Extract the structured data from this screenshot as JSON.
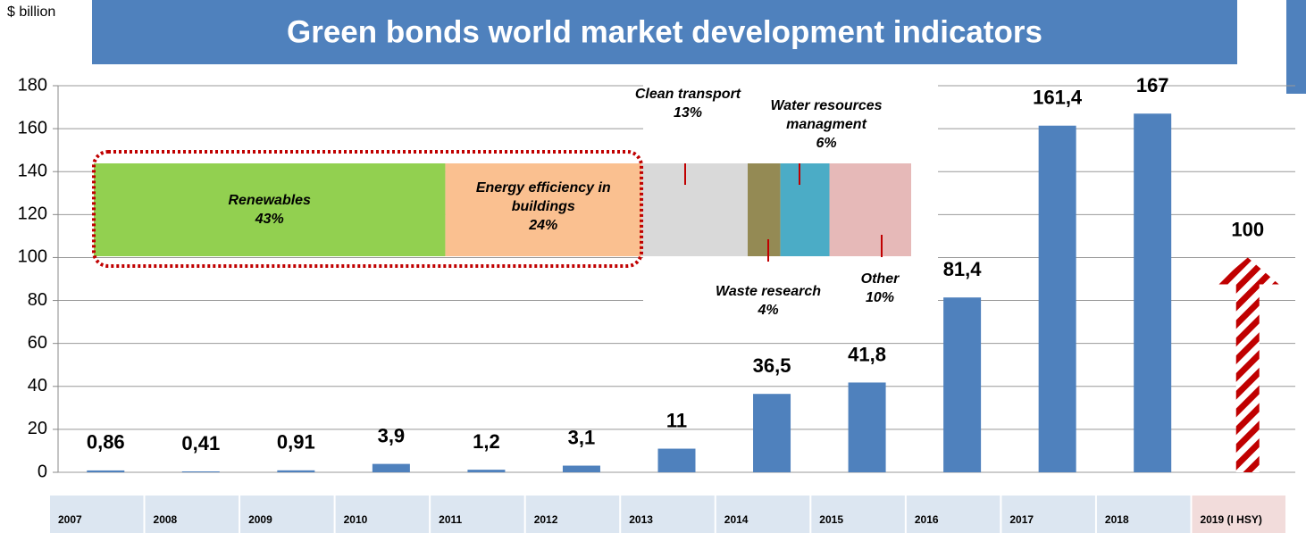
{
  "chart_data": [
    {
      "type": "bar",
      "title": "Green bonds world market development indicators",
      "y_label": "$ billion",
      "categories": [
        "2007",
        "2008",
        "2009",
        "2010",
        "2011",
        "2012",
        "2013",
        "2014",
        "2015",
        "2016",
        "2017",
        "2018",
        "2019 (I HSY)"
      ],
      "values": [
        0.86,
        0.41,
        0.91,
        3.9,
        1.2,
        3.1,
        11,
        36.5,
        41.8,
        81.4,
        161.4,
        167,
        100
      ],
      "value_labels": [
        "0,86",
        "0,41",
        "0,91",
        "3,9",
        "1,2",
        "3,1",
        "11",
        "36,5",
        "41,8",
        "81,4",
        "161,4",
        "167",
        "100"
      ],
      "color": "#4f81bd",
      "colors": [
        "#4f81bd",
        "#4f81bd",
        "#4f81bd",
        "#4f81bd",
        "#4f81bd",
        "#4f81bd",
        "#4f81bd",
        "#4f81bd",
        "#4f81bd",
        "#4f81bd",
        "#4f81bd",
        "#4f81bd",
        "#c00000"
      ],
      "ylim": [
        0,
        180
      ],
      "yticks": [
        0,
        20,
        40,
        60,
        80,
        100,
        120,
        140,
        160,
        180
      ],
      "grid": true
    },
    {
      "type": "stacked-bar",
      "categories": [
        "Renewables",
        "Energy efficiency in buildings",
        "Clean transport",
        "Waste research",
        "Water resources managment",
        "Other"
      ],
      "values": [
        43,
        24,
        13,
        4,
        6,
        10
      ],
      "value_labels": [
        "43%",
        "24%",
        "13%",
        "4%",
        "6%",
        "10%"
      ],
      "colors": [
        "#92d050",
        "#fac090",
        "#d9d9d9",
        "#948a54",
        "#4bacc6",
        "#e6b9b8"
      ]
    }
  ]
}
